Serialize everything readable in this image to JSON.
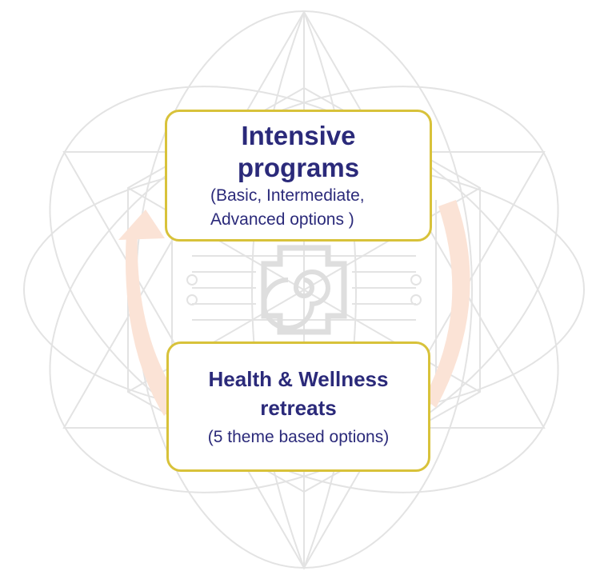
{
  "top_box": {
    "title": "Intensive programs",
    "subtitle": "(Basic, Intermediate, Advanced options )"
  },
  "bottom_box": {
    "title": "Health & Wellness retreats",
    "subtitle": "(5 theme based options)"
  },
  "colors": {
    "box_border": "#d8c23a",
    "text": "#2b2a7a",
    "arrow": "#fbe3d6",
    "background_lines": "#e3e3e3"
  },
  "icons": [
    "cycle-arrow-icon",
    "sacred-geometry-background",
    "spiral-emblem-icon"
  ]
}
